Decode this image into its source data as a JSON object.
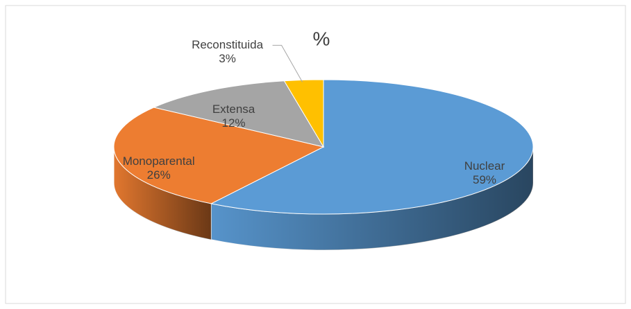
{
  "chart_data": {
    "type": "pie3d",
    "title": "%",
    "categories": [
      "Nuclear",
      "Monoparental",
      "Extensa",
      "Reconstituida"
    ],
    "values": [
      59,
      26,
      12,
      3
    ],
    "value_labels": [
      "59%",
      "26%",
      "12%",
      "3%"
    ],
    "colors": [
      "#5b9bd5",
      "#ed7d31",
      "#a5a5a5",
      "#ffc000"
    ]
  }
}
